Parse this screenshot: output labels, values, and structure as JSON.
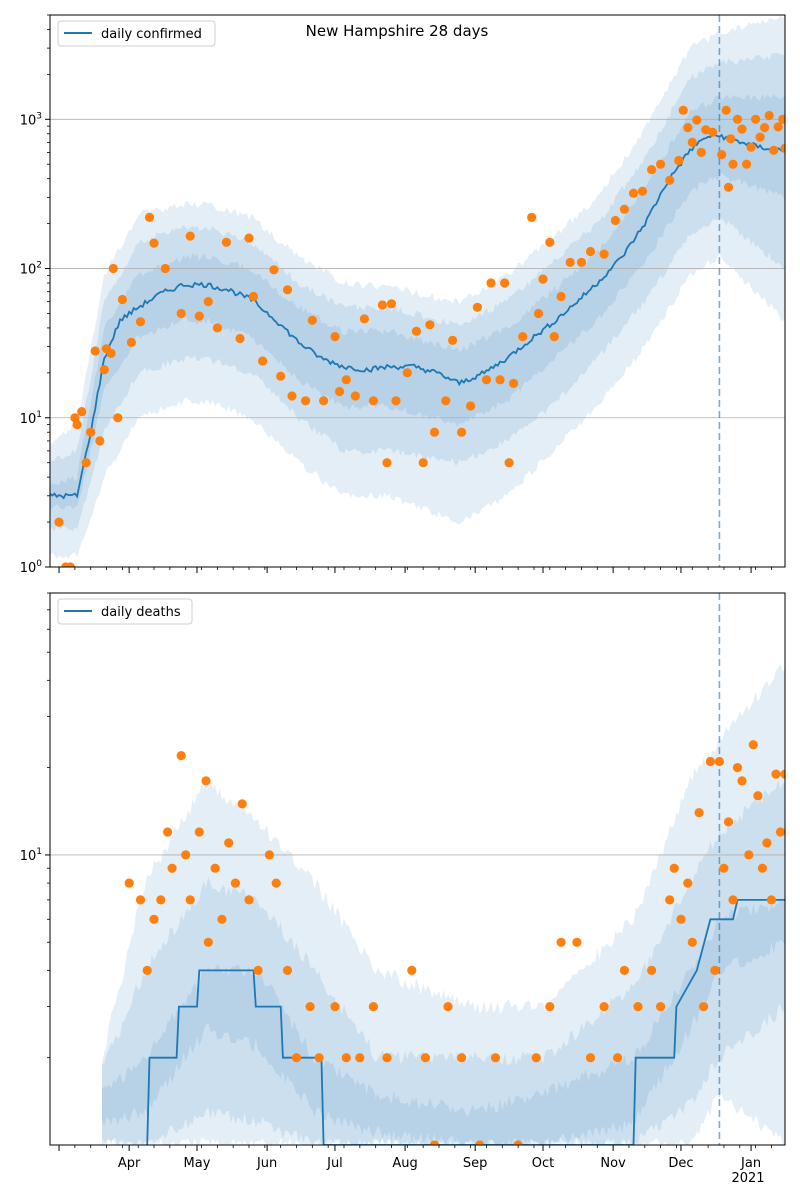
{
  "figure": {
    "title": "New Hampshire 28 days",
    "month_labels": [
      "Apr",
      "May",
      "Jun",
      "Jul",
      "Aug",
      "Sep",
      "Oct",
      "Nov",
      "Dec",
      "Jan"
    ],
    "year_label": "2021"
  },
  "colors": {
    "line": "#1f77b4",
    "points": "#ff7f0e",
    "band": "#1f77b4",
    "grid": "#b0b0b0",
    "forecast_marker": "#1f77b4"
  },
  "chart_data": [
    {
      "type": "line",
      "name": "confirmed",
      "legend": "daily confirmed",
      "yscale": "log",
      "ylim": [
        1,
        5000
      ],
      "yticks": [
        {
          "value": 1,
          "label": "10^0"
        },
        {
          "value": 10,
          "label": "10^1"
        },
        {
          "value": 100,
          "label": "10^2"
        },
        {
          "value": 1000,
          "label": "10^3"
        }
      ],
      "xlim": [
        "2020-02-26",
        "2021-01-16"
      ],
      "forecast_start": "2020-12-18",
      "grid": "horizontal-major",
      "legend_position": "top-left",
      "median_knots": [
        [
          "2020-02-26",
          3
        ],
        [
          "2020-03-09",
          3
        ],
        [
          "2020-03-15",
          8
        ],
        [
          "2020-03-21",
          25
        ],
        [
          "2020-03-28",
          45
        ],
        [
          "2020-04-05",
          55
        ],
        [
          "2020-04-15",
          68
        ],
        [
          "2020-04-25",
          78
        ],
        [
          "2020-05-05",
          78
        ],
        [
          "2020-05-15",
          72
        ],
        [
          "2020-05-25",
          62
        ],
        [
          "2020-06-05",
          45
        ],
        [
          "2020-06-15",
          32
        ],
        [
          "2020-06-25",
          25
        ],
        [
          "2020-07-05",
          22
        ],
        [
          "2020-07-15",
          21
        ],
        [
          "2020-07-25",
          22
        ],
        [
          "2020-08-05",
          22
        ],
        [
          "2020-08-15",
          20
        ],
        [
          "2020-08-25",
          17
        ],
        [
          "2020-09-05",
          20
        ],
        [
          "2020-09-15",
          25
        ],
        [
          "2020-09-25",
          33
        ],
        [
          "2020-10-05",
          43
        ],
        [
          "2020-10-15",
          58
        ],
        [
          "2020-10-25",
          80
        ],
        [
          "2020-11-05",
          120
        ],
        [
          "2020-11-15",
          200
        ],
        [
          "2020-11-25",
          380
        ],
        [
          "2020-12-05",
          620
        ],
        [
          "2020-12-12",
          760
        ],
        [
          "2020-12-18",
          780
        ],
        [
          "2020-12-25",
          720
        ],
        [
          "2021-01-05",
          650
        ],
        [
          "2021-01-16",
          620
        ]
      ],
      "band_knots": [
        [
          "2020-02-26",
          1.2,
          1.8,
          2.5,
          3,
          3.5,
          5,
          7
        ],
        [
          "2020-03-09",
          1.2,
          1.8,
          2.5,
          3,
          4,
          6,
          9
        ],
        [
          "2020-03-21",
          4,
          8,
          15,
          25,
          40,
          60,
          90
        ],
        [
          "2020-04-05",
          10,
          20,
          35,
          55,
          90,
          150,
          230
        ],
        [
          "2020-04-25",
          13,
          25,
          45,
          78,
          120,
          190,
          270
        ],
        [
          "2020-05-05",
          13,
          25,
          45,
          78,
          120,
          190,
          270
        ],
        [
          "2020-05-25",
          10,
          20,
          35,
          62,
          100,
          150,
          220
        ],
        [
          "2020-06-15",
          5,
          10,
          18,
          32,
          55,
          80,
          120
        ],
        [
          "2020-07-05",
          3,
          6,
          12,
          22,
          38,
          55,
          80
        ],
        [
          "2020-07-25",
          3,
          6,
          12,
          22,
          38,
          55,
          75
        ],
        [
          "2020-08-25",
          2,
          5,
          9,
          17,
          28,
          42,
          60
        ],
        [
          "2020-09-15",
          3,
          7,
          13,
          25,
          40,
          60,
          90
        ],
        [
          "2020-10-05",
          6,
          12,
          24,
          43,
          70,
          110,
          160
        ],
        [
          "2020-10-25",
          12,
          25,
          45,
          80,
          130,
          200,
          300
        ],
        [
          "2020-11-15",
          30,
          60,
          110,
          200,
          350,
          550,
          850
        ],
        [
          "2020-12-05",
          90,
          170,
          330,
          620,
          1100,
          1900,
          3000
        ],
        [
          "2020-12-18",
          120,
          220,
          420,
          780,
          1400,
          2400,
          3800
        ],
        [
          "2021-01-16",
          45,
          100,
          300,
          620,
          1400,
          2700,
          5000
        ]
      ],
      "observed_sparse": [
        [
          "2020-03-01",
          2
        ],
        [
          "2020-03-04",
          1
        ],
        [
          "2020-03-06",
          1
        ],
        [
          "2020-03-08",
          10
        ],
        [
          "2020-03-09",
          9
        ],
        [
          "2020-03-11",
          11
        ],
        [
          "2020-03-13",
          5
        ],
        [
          "2020-03-15",
          8
        ],
        [
          "2020-03-17",
          28
        ],
        [
          "2020-03-19",
          7
        ],
        [
          "2020-03-21",
          21
        ],
        [
          "2020-03-22",
          29
        ],
        [
          "2020-03-24",
          27
        ],
        [
          "2020-03-25",
          100
        ],
        [
          "2020-03-27",
          10
        ],
        [
          "2020-03-29",
          62
        ],
        [
          "2020-04-02",
          32
        ],
        [
          "2020-04-06",
          44
        ],
        [
          "2020-04-10",
          220
        ],
        [
          "2020-04-12",
          148
        ],
        [
          "2020-04-17",
          100
        ],
        [
          "2020-04-24",
          50
        ],
        [
          "2020-04-28",
          165
        ],
        [
          "2020-05-02",
          48
        ],
        [
          "2020-05-06",
          60
        ],
        [
          "2020-05-10",
          40
        ],
        [
          "2020-05-14",
          150
        ],
        [
          "2020-05-20",
          34
        ],
        [
          "2020-05-24",
          160
        ],
        [
          "2020-05-26",
          65
        ],
        [
          "2020-05-30",
          24
        ],
        [
          "2020-06-04",
          98
        ],
        [
          "2020-06-07",
          19
        ],
        [
          "2020-06-10",
          72
        ],
        [
          "2020-06-12",
          14
        ],
        [
          "2020-06-18",
          13
        ],
        [
          "2020-06-21",
          45
        ],
        [
          "2020-06-26",
          13
        ],
        [
          "2020-07-01",
          35
        ],
        [
          "2020-07-03",
          15
        ],
        [
          "2020-07-06",
          18
        ],
        [
          "2020-07-10",
          14
        ],
        [
          "2020-07-14",
          46
        ],
        [
          "2020-07-18",
          13
        ],
        [
          "2020-07-22",
          57
        ],
        [
          "2020-07-24",
          5
        ],
        [
          "2020-07-26",
          58
        ],
        [
          "2020-07-28",
          13
        ],
        [
          "2020-08-02",
          20
        ],
        [
          "2020-08-06",
          38
        ],
        [
          "2020-08-09",
          5
        ],
        [
          "2020-08-12",
          42
        ],
        [
          "2020-08-14",
          8
        ],
        [
          "2020-08-19",
          13
        ],
        [
          "2020-08-22",
          33
        ],
        [
          "2020-08-26",
          8
        ],
        [
          "2020-08-30",
          12
        ],
        [
          "2020-09-02",
          55
        ],
        [
          "2020-09-06",
          18
        ],
        [
          "2020-09-08",
          80
        ],
        [
          "2020-09-12",
          18
        ],
        [
          "2020-09-14",
          80
        ],
        [
          "2020-09-16",
          5
        ],
        [
          "2020-09-18",
          17
        ],
        [
          "2020-09-22",
          35
        ],
        [
          "2020-09-26",
          220
        ],
        [
          "2020-09-29",
          50
        ],
        [
          "2020-10-01",
          85
        ],
        [
          "2020-10-04",
          150
        ],
        [
          "2020-10-06",
          35
        ],
        [
          "2020-10-09",
          65
        ],
        [
          "2020-10-13",
          110
        ],
        [
          "2020-10-18",
          110
        ],
        [
          "2020-10-22",
          130
        ],
        [
          "2020-10-28",
          125
        ],
        [
          "2020-11-02",
          210
        ],
        [
          "2020-11-06",
          250
        ],
        [
          "2020-11-10",
          320
        ],
        [
          "2020-11-14",
          330
        ],
        [
          "2020-11-18",
          460
        ],
        [
          "2020-11-22",
          500
        ],
        [
          "2020-11-26",
          390
        ],
        [
          "2020-11-30",
          530
        ],
        [
          "2020-12-02",
          1150
        ],
        [
          "2020-12-04",
          880
        ],
        [
          "2020-12-06",
          700
        ],
        [
          "2020-12-08",
          990
        ],
        [
          "2020-12-10",
          600
        ],
        [
          "2020-12-12",
          850
        ],
        [
          "2020-12-15",
          820
        ],
        [
          "2020-12-19",
          580
        ],
        [
          "2020-12-21",
          1150
        ],
        [
          "2020-12-22",
          350
        ],
        [
          "2020-12-23",
          740
        ],
        [
          "2020-12-24",
          500
        ],
        [
          "2020-12-26",
          1000
        ],
        [
          "2020-12-28",
          860
        ],
        [
          "2020-12-30",
          500
        ],
        [
          "2021-01-01",
          650
        ],
        [
          "2021-01-03",
          1000
        ],
        [
          "2021-01-05",
          760
        ],
        [
          "2021-01-07",
          880
        ],
        [
          "2021-01-09",
          1060
        ],
        [
          "2021-01-11",
          620
        ],
        [
          "2021-01-13",
          890
        ],
        [
          "2021-01-15",
          1000
        ],
        [
          "2021-01-16",
          640
        ]
      ]
    },
    {
      "type": "line",
      "name": "deaths",
      "legend": "daily deaths",
      "yscale": "log",
      "ylim": [
        1,
        80
      ],
      "yticks": [
        {
          "value": 10,
          "label": "10^1"
        }
      ],
      "xlim": [
        "2020-02-26",
        "2021-01-16"
      ],
      "forecast_start": "2020-12-18",
      "grid": "horizontal-major",
      "legend_position": "top-left",
      "median_knots": [
        [
          "2020-04-09",
          1
        ],
        [
          "2020-04-10",
          2
        ],
        [
          "2020-04-22",
          2
        ],
        [
          "2020-04-23",
          3
        ],
        [
          "2020-05-01",
          3
        ],
        [
          "2020-05-02",
          4
        ],
        [
          "2020-05-26",
          4
        ],
        [
          "2020-05-27",
          3
        ],
        [
          "2020-06-07",
          3
        ],
        [
          "2020-06-08",
          2
        ],
        [
          "2020-06-25",
          2
        ],
        [
          "2020-06-26",
          1
        ],
        [
          "2020-11-10",
          1
        ],
        [
          "2020-11-11",
          2
        ],
        [
          "2020-11-28",
          2
        ],
        [
          "2020-11-29",
          3
        ],
        [
          "2020-12-08",
          4
        ],
        [
          "2020-12-14",
          6
        ],
        [
          "2020-12-24",
          6
        ],
        [
          "2020-12-26",
          7
        ],
        [
          "2021-01-16",
          7
        ]
      ],
      "band_knots": [
        [
          "2020-03-20",
          1,
          1,
          1.2,
          1.5,
          1.8,
          2
        ],
        [
          "2020-04-08",
          1,
          1,
          1.3,
          2,
          4,
          8
        ],
        [
          "2020-05-05",
          1,
          1.3,
          2.5,
          4,
          8,
          18
        ],
        [
          "2020-05-28",
          1,
          1.2,
          2.2,
          4,
          7,
          13
        ],
        [
          "2020-06-22",
          1,
          1,
          1.3,
          2,
          4,
          8
        ],
        [
          "2020-07-20",
          1,
          1,
          1.1,
          1.5,
          2,
          4
        ],
        [
          "2020-08-30",
          1,
          1,
          1,
          1.3,
          2,
          3
        ],
        [
          "2020-10-01",
          1,
          1,
          1,
          1.5,
          2,
          3
        ],
        [
          "2020-11-10",
          1,
          1,
          1.2,
          2,
          3.5,
          6
        ],
        [
          "2020-12-05",
          1,
          1.4,
          2.5,
          4,
          8,
          18
        ],
        [
          "2020-12-18",
          1.5,
          2,
          4,
          6,
          12,
          25
        ],
        [
          "2021-01-16",
          1,
          3,
          5,
          7,
          18,
          45
        ]
      ],
      "observed_sparse": [
        [
          "2020-04-01",
          8
        ],
        [
          "2020-04-06",
          7
        ],
        [
          "2020-04-09",
          4
        ],
        [
          "2020-04-12",
          6
        ],
        [
          "2020-04-15",
          7
        ],
        [
          "2020-04-18",
          12
        ],
        [
          "2020-04-20",
          9
        ],
        [
          "2020-04-24",
          22
        ],
        [
          "2020-04-26",
          10
        ],
        [
          "2020-04-28",
          7
        ],
        [
          "2020-05-02",
          12
        ],
        [
          "2020-05-05",
          18
        ],
        [
          "2020-05-06",
          5
        ],
        [
          "2020-05-09",
          9
        ],
        [
          "2020-05-12",
          6
        ],
        [
          "2020-05-15",
          11
        ],
        [
          "2020-05-18",
          8
        ],
        [
          "2020-05-21",
          15
        ],
        [
          "2020-05-24",
          7
        ],
        [
          "2020-05-28",
          4
        ],
        [
          "2020-06-02",
          10
        ],
        [
          "2020-06-05",
          8
        ],
        [
          "2020-06-10",
          4
        ],
        [
          "2020-06-14",
          2
        ],
        [
          "2020-06-20",
          3
        ],
        [
          "2020-06-24",
          2
        ],
        [
          "2020-07-01",
          3
        ],
        [
          "2020-07-06",
          2
        ],
        [
          "2020-07-12",
          2
        ],
        [
          "2020-07-18",
          3
        ],
        [
          "2020-07-24",
          2
        ],
        [
          "2020-08-04",
          4
        ],
        [
          "2020-08-10",
          2
        ],
        [
          "2020-08-14",
          1
        ],
        [
          "2020-08-20",
          3
        ],
        [
          "2020-08-26",
          2
        ],
        [
          "2020-09-03",
          1
        ],
        [
          "2020-09-10",
          2
        ],
        [
          "2020-09-20",
          1
        ],
        [
          "2020-09-28",
          2
        ],
        [
          "2020-10-04",
          3
        ],
        [
          "2020-10-09",
          5
        ],
        [
          "2020-10-16",
          5
        ],
        [
          "2020-10-22",
          2
        ],
        [
          "2020-10-28",
          3
        ],
        [
          "2020-11-03",
          2
        ],
        [
          "2020-11-06",
          4
        ],
        [
          "2020-11-12",
          3
        ],
        [
          "2020-11-18",
          4
        ],
        [
          "2020-11-22",
          3
        ],
        [
          "2020-11-26",
          7
        ],
        [
          "2020-11-28",
          9
        ],
        [
          "2020-12-01",
          6
        ],
        [
          "2020-12-04",
          8
        ],
        [
          "2020-12-06",
          5
        ],
        [
          "2020-12-09",
          14
        ],
        [
          "2020-12-11",
          3
        ],
        [
          "2020-12-14",
          21
        ],
        [
          "2020-12-16",
          4
        ],
        [
          "2020-12-18",
          21
        ],
        [
          "2020-12-20",
          9
        ],
        [
          "2020-12-22",
          13
        ],
        [
          "2020-12-24",
          7
        ],
        [
          "2020-12-26",
          20
        ],
        [
          "2020-12-28",
          18
        ],
        [
          "2020-12-31",
          10
        ],
        [
          "2021-01-02",
          24
        ],
        [
          "2021-01-04",
          16
        ],
        [
          "2021-01-06",
          9
        ],
        [
          "2021-01-08",
          11
        ],
        [
          "2021-01-10",
          7
        ],
        [
          "2021-01-12",
          19
        ],
        [
          "2021-01-14",
          12
        ],
        [
          "2021-01-16",
          19
        ]
      ]
    }
  ]
}
